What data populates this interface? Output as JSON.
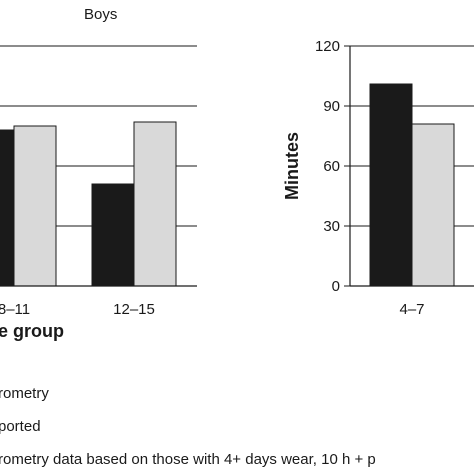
{
  "chart_data": [
    {
      "type": "bar",
      "title": "Boys",
      "xlabel": "e group",
      "ylabel": "",
      "ylim": [
        0,
        120
      ],
      "grid": true,
      "categories": [
        "8–11",
        "12–15"
      ],
      "series": [
        {
          "name": "rometry",
          "color": "#1a1a1a",
          "values": [
            78,
            51
          ]
        },
        {
          "name": "ported",
          "color": "#d9d9d9",
          "values": [
            80,
            82
          ]
        }
      ]
    },
    {
      "type": "bar",
      "title": "",
      "xlabel": "",
      "ylabel": "Minutes",
      "ylim": [
        0,
        120
      ],
      "yticks": [
        "0",
        "30",
        "60",
        "90",
        "120"
      ],
      "grid": true,
      "categories": [
        "4–7"
      ],
      "series": [
        {
          "name": "rometry",
          "color": "#1a1a1a",
          "values": [
            101
          ]
        },
        {
          "name": "ported",
          "color": "#d9d9d9",
          "values": [
            81
          ]
        }
      ]
    }
  ],
  "legend": [
    "rometry",
    "ported"
  ],
  "footnote": "rometry data based on those with 4+ days wear, 10 h + p"
}
